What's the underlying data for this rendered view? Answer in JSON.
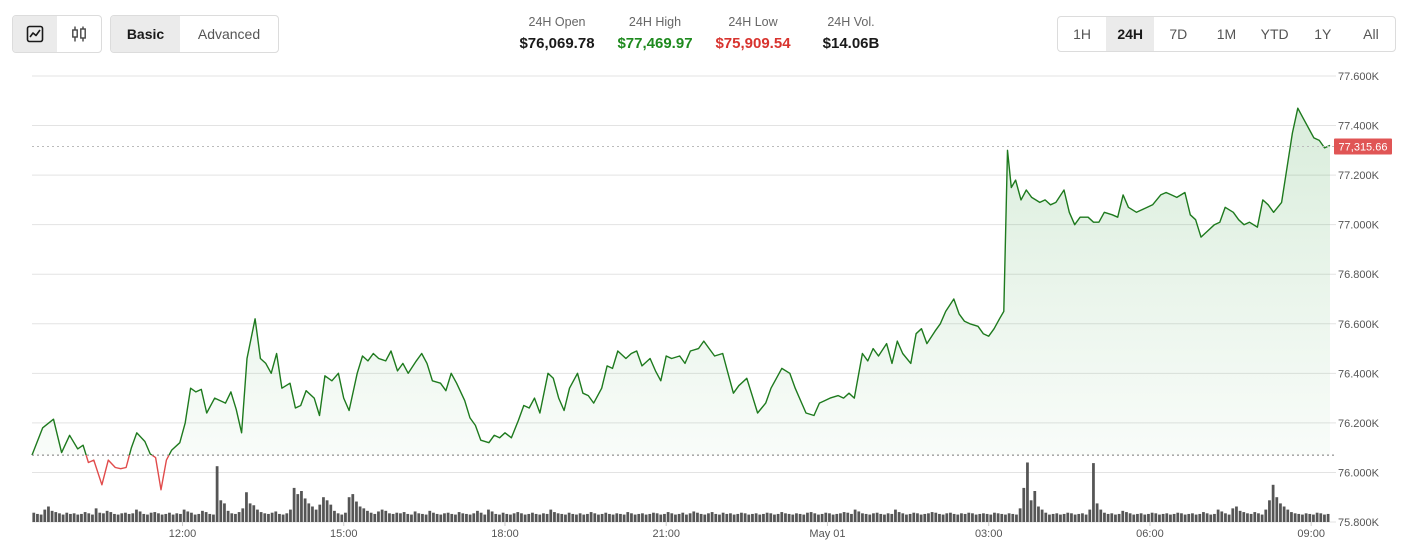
{
  "toolbar": {
    "chart_types": [
      {
        "icon": "line-chart-icon",
        "active": true
      },
      {
        "icon": "candlestick-icon",
        "active": false
      }
    ],
    "modes": [
      "Basic",
      "Advanced"
    ],
    "active_mode": "Basic"
  },
  "stats": {
    "open_label": "24H Open",
    "open_value": "$76,069.78",
    "high_label": "24H High",
    "high_value": "$77,469.97",
    "low_label": "24H Low",
    "low_value": "$75,909.54",
    "vol_label": "24H Vol.",
    "vol_value": "$14.06B"
  },
  "ranges": [
    "1H",
    "24H",
    "7D",
    "1M",
    "YTD",
    "1Y",
    "All"
  ],
  "active_range": "24H",
  "colors": {
    "up": "#1e7a1e",
    "down": "#e14b4b",
    "high_text": "#1e8a1e",
    "low_text": "#d8332e",
    "volume": "#555555",
    "grid": "#e3e3e3",
    "current_price_tag": "#e05555"
  },
  "chart_data": {
    "type": "line",
    "open_price": 76069.78,
    "current_price": 77315.66,
    "current_price_label": "77,315.66",
    "ylim": [
      75800,
      77600
    ],
    "y_ticks": [
      {
        "value": 77600,
        "label": "77.600K"
      },
      {
        "value": 77400,
        "label": "77.400K"
      },
      {
        "value": 77200,
        "label": "77.200K"
      },
      {
        "value": 77000,
        "label": "77.000K"
      },
      {
        "value": 76800,
        "label": "76.800K"
      },
      {
        "value": 76600,
        "label": "76.600K"
      },
      {
        "value": 76400,
        "label": "76.400K"
      },
      {
        "value": 76200,
        "label": "76.200K"
      },
      {
        "value": 76000,
        "label": "76.000K"
      },
      {
        "value": 75800,
        "label": "75.800K"
      }
    ],
    "x_range_hours": [
      9.2,
      33.35
    ],
    "x_ticks": [
      {
        "hour": 12,
        "label": "12:00"
      },
      {
        "hour": 15,
        "label": "15:00"
      },
      {
        "hour": 18,
        "label": "18:00"
      },
      {
        "hour": 21,
        "label": "21:00"
      },
      {
        "hour": 24,
        "label": "May 01"
      },
      {
        "hour": 27,
        "label": "03:00"
      },
      {
        "hour": 30,
        "label": "06:00"
      },
      {
        "hour": 33,
        "label": "09:00"
      }
    ],
    "price_series": {
      "name": "Price",
      "x_hours": [
        9.2,
        9.4,
        9.6,
        9.75,
        9.9,
        10.05,
        10.15,
        10.25,
        10.35,
        10.5,
        10.62,
        10.75,
        10.85,
        10.95,
        11.05,
        11.15,
        11.3,
        11.4,
        11.5,
        11.6,
        11.7,
        11.8,
        11.95,
        12.05,
        12.15,
        12.25,
        12.35,
        12.45,
        12.6,
        12.7,
        12.8,
        12.9,
        13.0,
        13.1,
        13.2,
        13.35,
        13.45,
        13.55,
        13.65,
        13.75,
        13.85,
        14.0,
        14.1,
        14.2,
        14.3,
        14.45,
        14.55,
        14.65,
        14.78,
        14.9,
        15.0,
        15.1,
        15.25,
        15.35,
        15.45,
        15.55,
        15.65,
        15.78,
        15.88,
        16.0,
        16.1,
        16.2,
        16.35,
        16.45,
        16.55,
        16.65,
        16.8,
        16.9,
        17.0,
        17.1,
        17.25,
        17.35,
        17.45,
        17.55,
        17.7,
        17.8,
        17.9,
        18.0,
        18.12,
        18.25,
        18.35,
        18.45,
        18.55,
        18.65,
        18.8,
        18.9,
        19.0,
        19.1,
        19.2,
        19.35,
        19.45,
        19.55,
        19.65,
        19.8,
        19.9,
        20.0,
        20.1,
        20.25,
        20.35,
        20.45,
        20.55,
        20.7,
        20.8,
        20.9,
        21.0,
        21.1,
        21.25,
        21.35,
        21.45,
        21.6,
        21.7,
        21.8,
        21.9,
        22.05,
        22.15,
        22.25,
        22.35,
        22.5,
        22.6,
        22.7,
        22.85,
        22.95,
        23.05,
        23.15,
        23.3,
        23.4,
        23.5,
        23.6,
        23.75,
        23.85,
        23.95,
        24.05,
        24.2,
        24.3,
        24.4,
        24.5,
        24.65,
        24.75,
        24.85,
        24.95,
        25.1,
        25.2,
        25.3,
        25.4,
        25.55,
        25.65,
        25.75,
        25.85,
        26.0,
        26.1,
        26.2,
        26.35,
        26.45,
        26.55,
        26.65,
        26.8,
        26.9,
        27.0,
        27.1,
        27.2,
        27.28,
        27.35,
        27.42,
        27.5,
        27.6,
        27.7,
        27.8,
        27.95,
        28.05,
        28.15,
        28.25,
        28.4,
        28.5,
        28.6,
        28.7,
        28.85,
        28.95,
        29.05,
        29.15,
        29.3,
        29.4,
        29.5,
        29.6,
        29.75,
        29.85,
        29.95,
        30.05,
        30.2,
        30.3,
        30.4,
        30.5,
        30.65,
        30.75,
        30.85,
        30.95,
        31.1,
        31.2,
        31.3,
        31.4,
        31.55,
        31.65,
        31.75,
        31.85,
        32.0,
        32.1,
        32.2,
        32.3,
        32.45,
        32.55,
        32.65,
        32.75,
        32.85,
        32.95,
        33.05,
        33.15,
        33.25,
        33.35
      ],
      "y_values": [
        76070,
        76180,
        76215,
        76080,
        76150,
        76095,
        76110,
        76040,
        76050,
        75950,
        76050,
        76020,
        76015,
        76020,
        76100,
        76160,
        76125,
        76075,
        76060,
        75930,
        76050,
        76090,
        76120,
        76200,
        76340,
        76325,
        76335,
        76240,
        76300,
        76290,
        76280,
        76325,
        76255,
        76160,
        76460,
        76620,
        76460,
        76440,
        76400,
        76480,
        76340,
        76360,
        76260,
        76270,
        76330,
        76300,
        76230,
        76390,
        76370,
        76400,
        76300,
        76250,
        76400,
        76470,
        76450,
        76480,
        76460,
        76450,
        76490,
        76410,
        76440,
        76400,
        76450,
        76480,
        76440,
        76370,
        76360,
        76330,
        76400,
        76360,
        76290,
        76220,
        76190,
        76130,
        76120,
        76150,
        76140,
        76160,
        76140,
        76210,
        76270,
        76260,
        76300,
        76240,
        76400,
        76380,
        76300,
        76250,
        76340,
        76400,
        76320,
        76310,
        76280,
        76340,
        76430,
        76420,
        76490,
        76460,
        76480,
        76490,
        76430,
        76460,
        76410,
        76370,
        76470,
        76460,
        76470,
        76440,
        76490,
        76500,
        76530,
        76500,
        76470,
        76480,
        76400,
        76320,
        76350,
        76380,
        76310,
        76240,
        76280,
        76340,
        76380,
        76420,
        76400,
        76340,
        76290,
        76240,
        76230,
        76280,
        76290,
        76300,
        76310,
        76300,
        76320,
        76300,
        76480,
        76450,
        76500,
        76470,
        76520,
        76440,
        76530,
        76480,
        76440,
        76560,
        76580,
        76520,
        76570,
        76600,
        76650,
        76700,
        76640,
        76610,
        76600,
        76590,
        76560,
        76550,
        76580,
        76620,
        76650,
        77300,
        77150,
        77180,
        77100,
        77140,
        77110,
        77090,
        77100,
        77080,
        77090,
        77140,
        77050,
        77000,
        77030,
        77030,
        77010,
        77010,
        77050,
        77040,
        77030,
        77120,
        77070,
        77050,
        77060,
        77070,
        77080,
        77120,
        77130,
        77120,
        77110,
        77130,
        77040,
        77020,
        76950,
        76980,
        77000,
        77010,
        77070,
        77050,
        77020,
        77000,
        77010,
        76990,
        77100,
        77080,
        77050,
        77090,
        77230,
        77370,
        77470,
        77430,
        77390,
        77350,
        77340,
        77310,
        77320
      ]
    },
    "volume_series": {
      "name": "Volume",
      "note": "relative bar heights 0-1",
      "values": [
        0.15,
        0.13,
        0.12,
        0.2,
        0.25,
        0.18,
        0.16,
        0.14,
        0.12,
        0.15,
        0.13,
        0.14,
        0.12,
        0.13,
        0.16,
        0.14,
        0.12,
        0.22,
        0.15,
        0.14,
        0.18,
        0.16,
        0.13,
        0.12,
        0.14,
        0.15,
        0.13,
        0.14,
        0.2,
        0.17,
        0.13,
        0.12,
        0.15,
        0.16,
        0.14,
        0.12,
        0.13,
        0.15,
        0.12,
        0.14,
        0.13,
        0.2,
        0.17,
        0.15,
        0.12,
        0.13,
        0.18,
        0.16,
        0.13,
        0.12,
        0.9,
        0.35,
        0.3,
        0.18,
        0.14,
        0.13,
        0.16,
        0.22,
        0.48,
        0.3,
        0.27,
        0.2,
        0.16,
        0.14,
        0.13,
        0.15,
        0.17,
        0.13,
        0.12,
        0.14,
        0.2,
        0.55,
        0.45,
        0.5,
        0.38,
        0.3,
        0.25,
        0.2,
        0.28,
        0.4,
        0.35,
        0.28,
        0.18,
        0.14,
        0.12,
        0.15,
        0.4,
        0.45,
        0.33,
        0.25,
        0.22,
        0.18,
        0.15,
        0.13,
        0.17,
        0.2,
        0.18,
        0.14,
        0.13,
        0.15,
        0.14,
        0.16,
        0.13,
        0.12,
        0.17,
        0.14,
        0.13,
        0.12,
        0.18,
        0.15,
        0.13,
        0.12,
        0.14,
        0.15,
        0.13,
        0.12,
        0.16,
        0.14,
        0.13,
        0.12,
        0.14,
        0.18,
        0.15,
        0.12,
        0.2,
        0.17,
        0.13,
        0.12,
        0.15,
        0.13,
        0.12,
        0.14,
        0.16,
        0.14,
        0.12,
        0.13,
        0.15,
        0.13,
        0.12,
        0.14,
        0.13,
        0.2,
        0.16,
        0.14,
        0.13,
        0.12,
        0.15,
        0.13,
        0.12,
        0.14,
        0.12,
        0.13,
        0.16,
        0.14,
        0.12,
        0.13,
        0.15,
        0.13,
        0.12,
        0.14,
        0.13,
        0.12,
        0.16,
        0.14,
        0.12,
        0.13,
        0.14,
        0.12,
        0.13,
        0.15,
        0.14,
        0.12,
        0.13,
        0.16,
        0.14,
        0.12,
        0.13,
        0.15,
        0.12,
        0.14,
        0.17,
        0.15,
        0.13,
        0.12,
        0.14,
        0.16,
        0.13,
        0.12,
        0.15,
        0.13,
        0.14,
        0.12,
        0.13,
        0.15,
        0.14,
        0.12,
        0.13,
        0.14,
        0.12,
        0.13,
        0.15,
        0.14,
        0.12,
        0.13,
        0.16,
        0.14,
        0.13,
        0.12,
        0.14,
        0.13,
        0.12,
        0.15,
        0.16,
        0.14,
        0.12,
        0.13,
        0.15,
        0.14,
        0.12,
        0.13,
        0.14,
        0.16,
        0.15,
        0.13,
        0.2,
        0.17,
        0.14,
        0.13,
        0.12,
        0.14,
        0.15,
        0.13,
        0.12,
        0.14,
        0.13,
        0.2,
        0.16,
        0.14,
        0.12,
        0.13,
        0.15,
        0.14,
        0.12,
        0.13,
        0.14,
        0.16,
        0.15,
        0.13,
        0.12,
        0.14,
        0.15,
        0.13,
        0.12,
        0.14,
        0.13,
        0.15,
        0.14,
        0.12,
        0.13,
        0.14,
        0.13,
        0.12,
        0.15,
        0.14,
        0.13,
        0.12,
        0.14,
        0.13,
        0.12,
        0.22,
        0.55,
        0.96,
        0.35,
        0.5,
        0.25,
        0.2,
        0.15,
        0.12,
        0.13,
        0.14,
        0.12,
        0.13,
        0.15,
        0.14,
        0.12,
        0.13,
        0.14,
        0.12,
        0.2,
        0.95,
        0.3,
        0.2,
        0.15,
        0.13,
        0.14,
        0.12,
        0.13,
        0.18,
        0.16,
        0.14,
        0.12,
        0.13,
        0.14,
        0.12,
        0.13,
        0.15,
        0.14,
        0.12,
        0.13,
        0.14,
        0.12,
        0.13,
        0.15,
        0.14,
        0.12,
        0.13,
        0.14,
        0.12,
        0.13,
        0.16,
        0.14,
        0.12,
        0.13,
        0.2,
        0.17,
        0.14,
        0.12,
        0.22,
        0.25,
        0.18,
        0.16,
        0.14,
        0.13,
        0.16,
        0.14,
        0.12,
        0.2,
        0.35,
        0.6,
        0.4,
        0.3,
        0.25,
        0.2,
        0.16,
        0.14,
        0.13,
        0.12,
        0.14,
        0.13,
        0.12,
        0.15,
        0.14,
        0.12,
        0.13
      ]
    }
  }
}
